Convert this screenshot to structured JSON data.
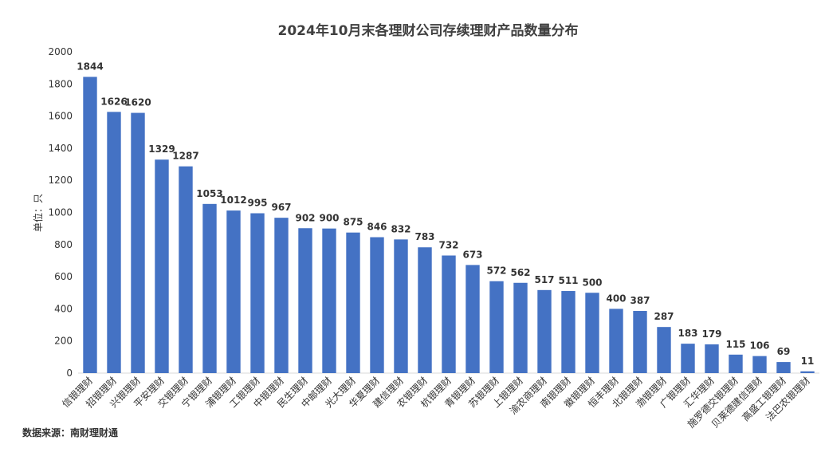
{
  "chart_data": {
    "type": "bar",
    "title": "2024年10月末各理财公司存续理财产品数量分布",
    "ylabel": "单位：只",
    "xlabel": "",
    "ylim": [
      0,
      2000
    ],
    "yticks": [
      0,
      200,
      400,
      600,
      800,
      1000,
      1200,
      1400,
      1600,
      1800,
      2000
    ],
    "grid": false,
    "legend": "none",
    "bar_color": "#4472C4",
    "categories": [
      "信银理财",
      "招银理财",
      "兴银理财",
      "平安理财",
      "交银理财",
      "宁银理财",
      "浦银理财",
      "工银理财",
      "中银理财",
      "民生理财",
      "中邮理财",
      "光大理财",
      "华夏理财",
      "建信理财",
      "农银理财",
      "杭银理财",
      "青银理财",
      "苏银理财",
      "上银理财",
      "渝农商理财",
      "南银理财",
      "徽银理财",
      "恒丰理财",
      "北银理财",
      "渤银理财",
      "广银理财",
      "汇华理财",
      "施罗德交银理财",
      "贝莱德建信理财",
      "高盛工银理财",
      "法巴农银理财"
    ],
    "values": [
      1844,
      1626,
      1620,
      1329,
      1287,
      1053,
      1012,
      995,
      967,
      902,
      900,
      875,
      846,
      832,
      783,
      732,
      673,
      572,
      562,
      517,
      511,
      500,
      400,
      387,
      287,
      183,
      179,
      115,
      106,
      69,
      11
    ],
    "source": "数据来源：南财理财通"
  }
}
